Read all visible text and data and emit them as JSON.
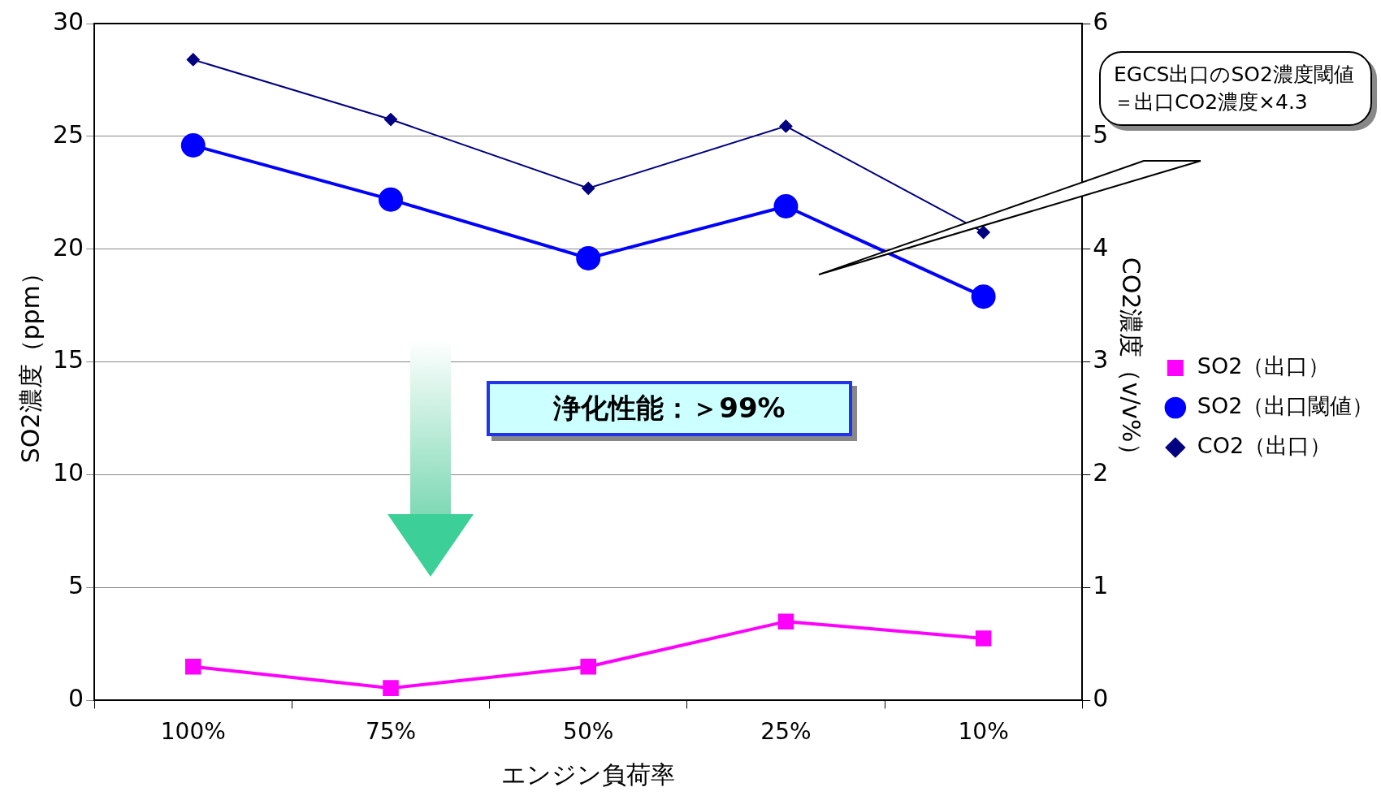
{
  "chart_data": {
    "type": "line",
    "xlabel": "エンジン負荷率",
    "ylabel": "SO2濃度（ppm）",
    "y2label": "CO2濃度（v/v%）",
    "categories": [
      "100%",
      "75%",
      "50%",
      "25%",
      "10%"
    ],
    "series": [
      {
        "name": "SO2（出口）",
        "color": "#ff00ff",
        "marker": "square",
        "values": [
          1.5,
          0.55,
          1.5,
          3.5,
          2.75
        ]
      },
      {
        "name": "SO2（出口閾値）",
        "color": "#0000ff",
        "marker": "circle",
        "values": [
          24.6,
          22.2,
          19.6,
          21.9,
          17.9
        ]
      },
      {
        "name": "CO2（出口）",
        "color": "#000080",
        "marker": "diamond",
        "axis": "y2",
        "values": [
          5.68,
          5.15,
          4.54,
          5.09,
          4.15
        ]
      }
    ],
    "ylim": [
      0,
      30
    ],
    "yticks": [
      0,
      5,
      10,
      15,
      20,
      25,
      30
    ],
    "y2lim": [
      0,
      6
    ],
    "y2ticks": [
      0,
      1,
      2,
      3,
      4,
      5,
      6
    ],
    "grid": "y",
    "legend": "right",
    "annotations": [
      "EGCS出口のSO2濃度閾値＝出口CO2濃度×4.3",
      "浄化性能：＞99%"
    ]
  }
}
